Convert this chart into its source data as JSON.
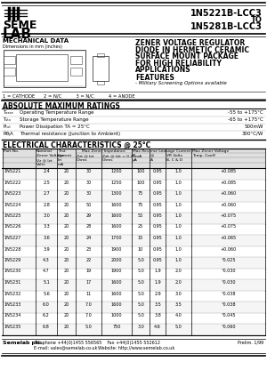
{
  "title_part1": "1N5221B-LCC3",
  "title_to": "TO",
  "title_part2": "1N5281B-LCC3",
  "mech_data_title": "MECHANICAL DATA",
  "mech_data_sub": "Dimensions in mm (inches)",
  "product_title_lines": [
    "ZENER VOLTAGE REGULATOR",
    "DIODE IN HERMETIC CERAMIC",
    "SURFACE MOUNT PACKAGE",
    "FOR HIGH RELIABILITY",
    "APPLICATIONS"
  ],
  "features_title": "FEATURES",
  "features_bullet": "- Military Screening Options available",
  "pin_labels": "1 = CATHODE      2 = N/C          3 = N/C          4 = ANODE",
  "abs_max_title": "ABSOLUTE MAXIMUM RATINGS",
  "abs_max_rows": [
    [
      "Tcase",
      "Operating Temperature Range",
      "-55 to +175°C"
    ],
    [
      "Tstg",
      "Storage Temperature Range",
      "-65 to +175°C"
    ],
    [
      "Ptot",
      "Power Dissipation TA = 25°C",
      "500mW"
    ],
    [
      "Rth,A",
      "Thermal resistance (Junction to Ambient)",
      "300°C/W"
    ]
  ],
  "elec_title": "ELECTRICAL CHARACTERISTICS @ 25°C",
  "elec_rows": [
    [
      "1N5221",
      "2.4",
      "20",
      "30",
      "1200",
      "100",
      "0.95",
      "1.0",
      "+0.085"
    ],
    [
      "1N5222",
      "2.5",
      "20",
      "30",
      "1250",
      "100",
      "0.95",
      "1.0",
      "+0.085"
    ],
    [
      "1N5223",
      "2.7",
      "20",
      "30",
      "1300",
      "75",
      "0.95",
      "1.0",
      "+0.060"
    ],
    [
      "1N5224",
      "2.8",
      "20",
      "50",
      "1600",
      "75",
      "0.95",
      "1.0",
      "+0.060"
    ],
    [
      "1N5225",
      "3.0",
      "20",
      "29",
      "1600",
      "50",
      "0.95",
      "1.0",
      "+0.075"
    ],
    [
      "1N5226",
      "3.3",
      "20",
      "28",
      "1600",
      "25",
      "0.95",
      "1.0",
      "+0.075"
    ],
    [
      "1N5227",
      "3.6",
      "20",
      "24",
      "1700",
      "15",
      "0.95",
      "1.0",
      "+0.065"
    ],
    [
      "1N5228",
      "3.9",
      "20",
      "23",
      "1900",
      "10",
      "0.95",
      "1.0",
      "+0.060"
    ],
    [
      "1N5229",
      "4.3",
      "20",
      "22",
      "2000",
      "5.0",
      "0.95",
      "1.0",
      "°0.025"
    ],
    [
      "1N5230",
      "4.7",
      "20",
      "19",
      "1900",
      "5.0",
      "1.9",
      "2.0",
      "°0.030"
    ],
    [
      "1N5231",
      "5.1",
      "20",
      "17",
      "1600",
      "5.0",
      "1.9",
      "2.0",
      "°0.030"
    ],
    [
      "1N5232",
      "5.6",
      "20",
      "11",
      "1600",
      "5.0",
      "2.9",
      "3.0",
      "°0.038"
    ],
    [
      "1N5233",
      "6.0",
      "20",
      "7.0",
      "1600",
      "5.0",
      "3.5",
      "3.5",
      "°0.038"
    ],
    [
      "1N5234",
      "6.2",
      "20",
      "7.0",
      "1000",
      "5.0",
      "3.8",
      "4.0",
      "°0.045"
    ],
    [
      "1N5235",
      "6.8",
      "20",
      "5.0",
      "750",
      "3.0",
      "4.6",
      "5.0",
      "°0.060"
    ]
  ],
  "footer_company": "Semelab plc.",
  "footer_tel": "Telephone +44(0)1455 556565    Fax +44(0)1455 552612",
  "footer_email": "E-mail: sales@semelab.co.uk",
  "footer_web": "Website: http://www.semelab.co.uk",
  "footer_page": "Prelim. 1/99",
  "bg_color": "#ffffff"
}
